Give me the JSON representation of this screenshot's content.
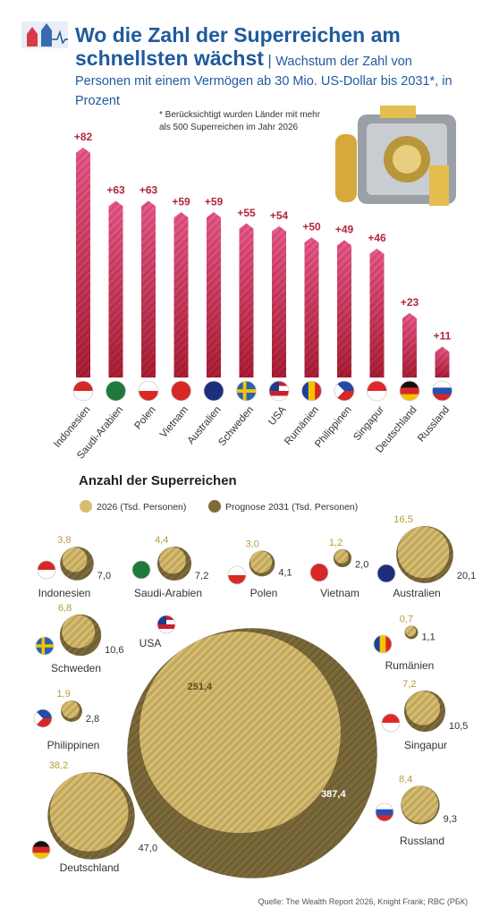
{
  "chart_data": [
    {
      "type": "bar",
      "title": "Wo die Zahl der Superreichen am schnellsten wächst",
      "subtitle": "Wachstum der Zahl von Personen mit einem Vermögen ab 30 Mio. US-Dollar bis 2031*, in Prozent",
      "note": "* Berücksichtigt wurden Länder mit mehr als 500 Superreichen im Jahr 2026",
      "categories": [
        "Indonesien",
        "Saudi-Arabien",
        "Polen",
        "Vietnam",
        "Australien",
        "Schweden",
        "USA",
        "Rumänien",
        "Philippinen",
        "Singapur",
        "Deutschland",
        "Russland"
      ],
      "values": [
        82,
        63,
        63,
        59,
        59,
        55,
        54,
        50,
        49,
        46,
        23,
        11
      ],
      "value_labels": [
        "+82",
        "+63",
        "+63",
        "+59",
        "+59",
        "+55",
        "+54",
        "+50",
        "+49",
        "+46",
        "+23",
        "+11"
      ],
      "color": "#d6335c"
    },
    {
      "type": "bubble",
      "title": "Anzahl der Superreichen",
      "categories": [
        "Indonesien",
        "Saudi-Arabien",
        "Polen",
        "Vietnam",
        "Australien",
        "Schweden",
        "USA",
        "Rumänien",
        "Philippinen",
        "Singapur",
        "Deutschland",
        "Russland"
      ],
      "series": [
        {
          "name": "2026 (Tsd. Personen)",
          "color": "#d8bd6e",
          "values": [
            3.8,
            4.4,
            3.0,
            1.2,
            16.5,
            6.8,
            251.4,
            0.7,
            1.9,
            7.2,
            38.2,
            8.4
          ],
          "value_labels": [
            "3,8",
            "4,4",
            "3,0",
            "1,2",
            "16,5",
            "6,8",
            "251,4",
            "0,7",
            "1,9",
            "7,2",
            "38,2",
            "8,4"
          ]
        },
        {
          "name": "Prognose 2031 (Tsd. Personen)",
          "color": "#7d6b3b",
          "values": [
            7.0,
            7.2,
            4.1,
            2.0,
            20.1,
            10.6,
            387.4,
            1.1,
            2.8,
            10.5,
            47.0,
            9.3
          ],
          "value_labels": [
            "7,0",
            "7,2",
            "4,1",
            "2,0",
            "20,1",
            "10,6",
            "387,4",
            "1,1",
            "2,8",
            "10,5",
            "47,0",
            "9,3"
          ]
        }
      ],
      "source": "Quelle: The Wealth Report 2026, Knight Frank; RBC (РБК)"
    }
  ]
}
